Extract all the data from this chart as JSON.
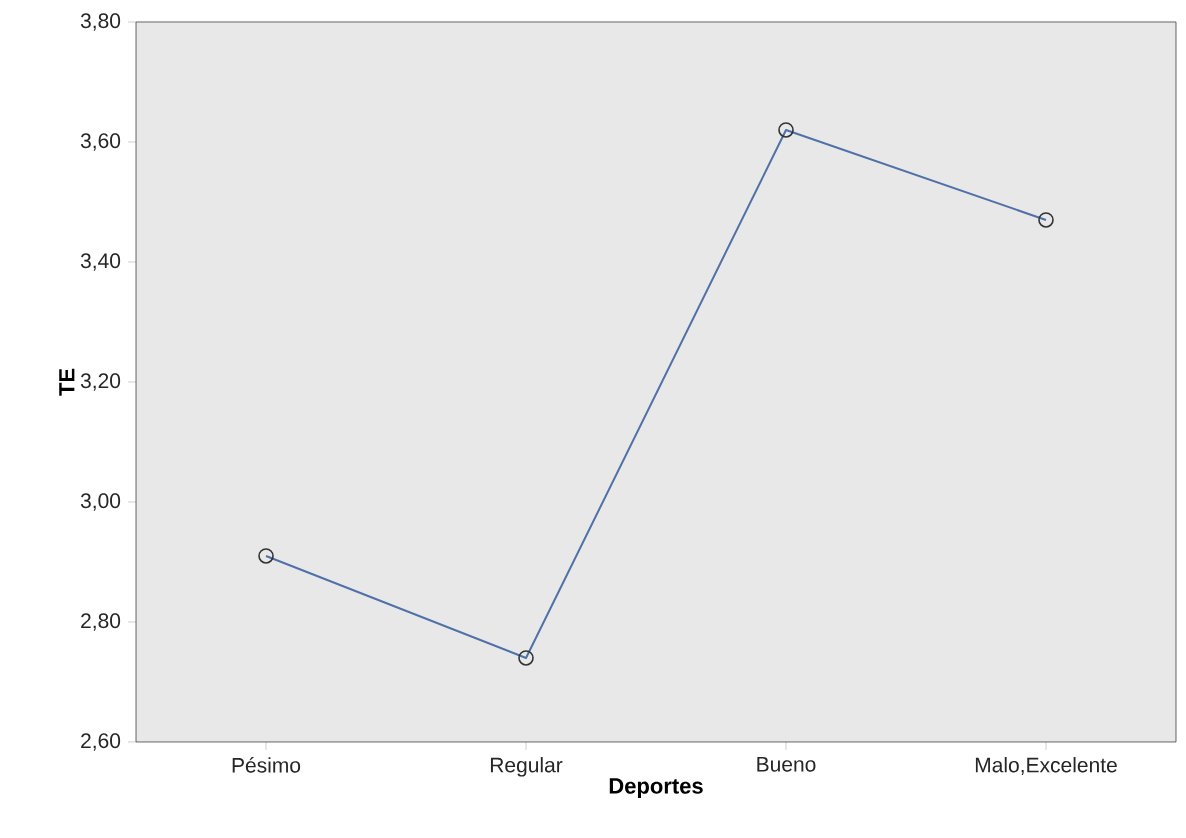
{
  "chart_data": {
    "type": "line",
    "xlabel": "Deportes",
    "ylabel": "TE",
    "categories": [
      "Pésimo",
      "Regular",
      "Bueno",
      "Malo,Excelente"
    ],
    "series": [
      {
        "color": "#5070a8",
        "values": [
          2.91,
          2.74,
          3.62,
          3.47
        ]
      }
    ],
    "ylim": [
      2.6,
      3.8
    ],
    "yticks": [
      {
        "value": 2.6,
        "label": "2,60"
      },
      {
        "value": 2.8,
        "label": "2,80"
      },
      {
        "value": 3.0,
        "label": "3,00"
      },
      {
        "value": 3.2,
        "label": "3,20"
      },
      {
        "value": 3.4,
        "label": "3,40"
      },
      {
        "value": 3.6,
        "label": "3,60"
      },
      {
        "value": 3.8,
        "label": "3,80"
      }
    ],
    "grid": false,
    "marker": "circle",
    "line_style": "solid"
  }
}
